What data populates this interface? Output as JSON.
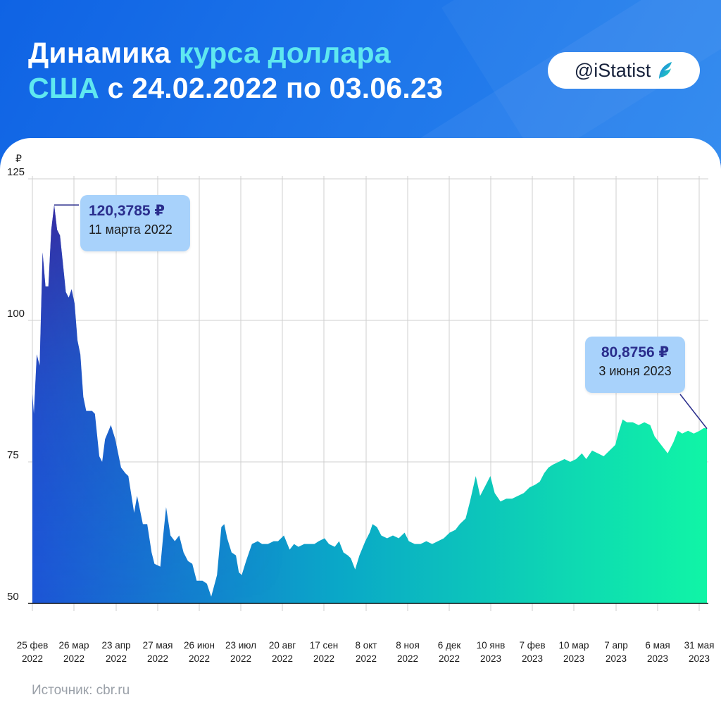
{
  "header": {
    "title_part1": "Динамика ",
    "title_part2": "курса доллара",
    "title_part3": "США",
    "title_part4": " с 24.02.2022 по 03.06.23",
    "badge": "@iStatist",
    "badge_icon": "istatist-logo-icon"
  },
  "colors": {
    "header_bg": "#1672e6",
    "highlight": "#5fe8f0",
    "area_top_left": "#3a2a9c",
    "area_bottom_left": "#1c64d8",
    "area_right": "#12f2a6",
    "callout_bg": "#a8d2fb",
    "callout_value": "#2a2d8c"
  },
  "callouts": [
    {
      "value": "120,3785 ₽",
      "date": "11 марта 2022"
    },
    {
      "value": "80,8756 ₽",
      "date": "3 июня 2023"
    }
  ],
  "source": "Источник: cbr.ru",
  "chart_data": {
    "type": "area",
    "title": "",
    "ylabel": "₽",
    "ylim": [
      50,
      125
    ],
    "yticks": [
      50,
      75,
      100,
      125
    ],
    "x_start": "2022-02-24",
    "x_end": "2023-06-03",
    "x_tick_labels": [
      [
        "25 фев",
        "2022"
      ],
      [
        "26 мар",
        "2022"
      ],
      [
        "23 апр",
        "2022"
      ],
      [
        "27 мая",
        "2022"
      ],
      [
        "26 июн",
        "2022"
      ],
      [
        "23 июл",
        "2022"
      ],
      [
        "20 авг",
        "2022"
      ],
      [
        "17 сен",
        "2022"
      ],
      [
        "8 окт",
        "2022"
      ],
      [
        "8 ноя",
        "2022"
      ],
      [
        "6 дек",
        "2022"
      ],
      [
        "10 янв",
        "2023"
      ],
      [
        "7 фев",
        "2023"
      ],
      [
        "10 мар",
        "2023"
      ],
      [
        "7 апр",
        "2023"
      ],
      [
        "6 мая",
        "2023"
      ],
      [
        "31 мая",
        "2023"
      ]
    ],
    "grid": true,
    "series": [
      {
        "values": [
          [
            "2022-02-24",
            87.0
          ],
          [
            "2022-02-25",
            83.5
          ],
          [
            "2022-02-27",
            94.0
          ],
          [
            "2022-03-01",
            92.0
          ],
          [
            "2022-03-03",
            112.0
          ],
          [
            "2022-03-05",
            106.0
          ],
          [
            "2022-03-07",
            106.0
          ],
          [
            "2022-03-09",
            116.0
          ],
          [
            "2022-03-11",
            120.3785
          ],
          [
            "2022-03-13",
            116.0
          ],
          [
            "2022-03-15",
            115.0
          ],
          [
            "2022-03-17",
            110.0
          ],
          [
            "2022-03-19",
            105.0
          ],
          [
            "2022-03-21",
            104.0
          ],
          [
            "2022-03-23",
            105.5
          ],
          [
            "2022-03-25",
            103.0
          ],
          [
            "2022-03-27",
            96.5
          ],
          [
            "2022-03-29",
            94.0
          ],
          [
            "2022-03-31",
            86.5
          ],
          [
            "2022-04-02",
            84.0
          ],
          [
            "2022-04-06",
            84.0
          ],
          [
            "2022-04-08",
            83.5
          ],
          [
            "2022-04-11",
            76.0
          ],
          [
            "2022-04-13",
            75.0
          ],
          [
            "2022-04-15",
            79.0
          ],
          [
            "2022-04-19",
            81.5
          ],
          [
            "2022-04-22",
            79.0
          ],
          [
            "2022-04-26",
            74.0
          ],
          [
            "2022-04-29",
            73.0
          ],
          [
            "2022-05-01",
            72.5
          ],
          [
            "2022-05-05",
            66.0
          ],
          [
            "2022-05-07",
            69.0
          ],
          [
            "2022-05-11",
            64.0
          ],
          [
            "2022-05-14",
            64.0
          ],
          [
            "2022-05-17",
            59.0
          ],
          [
            "2022-05-19",
            57.0
          ],
          [
            "2022-05-23",
            56.5
          ],
          [
            "2022-05-25",
            62.0
          ],
          [
            "2022-05-27",
            67.0
          ],
          [
            "2022-05-30",
            62.0
          ],
          [
            "2022-06-02",
            61.0
          ],
          [
            "2022-06-05",
            62.0
          ],
          [
            "2022-06-08",
            59.0
          ],
          [
            "2022-06-11",
            57.5
          ],
          [
            "2022-06-14",
            57.0
          ],
          [
            "2022-06-17",
            54.0
          ],
          [
            "2022-06-21",
            54.0
          ],
          [
            "2022-06-24",
            53.5
          ],
          [
            "2022-06-27",
            51.2
          ],
          [
            "2022-07-01",
            55.0
          ],
          [
            "2022-07-04",
            63.5
          ],
          [
            "2022-07-06",
            64.0
          ],
          [
            "2022-07-08",
            61.5
          ],
          [
            "2022-07-11",
            59.0
          ],
          [
            "2022-07-14",
            58.5
          ],
          [
            "2022-07-16",
            55.5
          ],
          [
            "2022-07-18",
            55.0
          ],
          [
            "2022-07-21",
            57.5
          ],
          [
            "2022-07-25",
            60.5
          ],
          [
            "2022-07-29",
            61.0
          ],
          [
            "2022-08-01",
            60.5
          ],
          [
            "2022-08-05",
            60.5
          ],
          [
            "2022-08-09",
            61.0
          ],
          [
            "2022-08-12",
            61.0
          ],
          [
            "2022-08-16",
            62.0
          ],
          [
            "2022-08-20",
            59.5
          ],
          [
            "2022-08-23",
            60.5
          ],
          [
            "2022-08-26",
            60.0
          ],
          [
            "2022-08-30",
            60.5
          ],
          [
            "2022-09-02",
            60.5
          ],
          [
            "2022-09-06",
            60.5
          ],
          [
            "2022-09-09",
            61.0
          ],
          [
            "2022-09-13",
            61.5
          ],
          [
            "2022-09-16",
            60.5
          ],
          [
            "2022-09-20",
            60.0
          ],
          [
            "2022-09-23",
            61.0
          ],
          [
            "2022-09-26",
            59.0
          ],
          [
            "2022-09-29",
            58.5
          ],
          [
            "2022-10-01",
            58.0
          ],
          [
            "2022-10-04",
            56.0
          ],
          [
            "2022-10-07",
            58.5
          ],
          [
            "2022-10-11",
            61.0
          ],
          [
            "2022-10-14",
            62.5
          ],
          [
            "2022-10-16",
            64.0
          ],
          [
            "2022-10-19",
            63.5
          ],
          [
            "2022-10-22",
            62.0
          ],
          [
            "2022-10-26",
            61.5
          ],
          [
            "2022-10-30",
            62.0
          ],
          [
            "2022-11-03",
            61.5
          ],
          [
            "2022-11-07",
            62.5
          ],
          [
            "2022-11-10",
            61.0
          ],
          [
            "2022-11-14",
            60.5
          ],
          [
            "2022-11-18",
            60.5
          ],
          [
            "2022-11-22",
            61.0
          ],
          [
            "2022-11-26",
            60.5
          ],
          [
            "2022-11-30",
            61.0
          ],
          [
            "2022-12-04",
            61.5
          ],
          [
            "2022-12-08",
            62.5
          ],
          [
            "2022-12-12",
            63.0
          ],
          [
            "2022-12-15",
            64.0
          ],
          [
            "2022-12-19",
            65.0
          ],
          [
            "2022-12-22",
            68.0
          ],
          [
            "2022-12-26",
            72.5
          ],
          [
            "2022-12-29",
            69.0
          ],
          [
            "2023-01-02",
            71.0
          ],
          [
            "2023-01-05",
            72.5
          ],
          [
            "2023-01-08",
            69.5
          ],
          [
            "2023-01-12",
            68.0
          ],
          [
            "2023-01-16",
            68.5
          ],
          [
            "2023-01-20",
            68.5
          ],
          [
            "2023-01-24",
            69.0
          ],
          [
            "2023-01-28",
            69.5
          ],
          [
            "2023-02-01",
            70.5
          ],
          [
            "2023-02-05",
            71.0
          ],
          [
            "2023-02-08",
            71.5
          ],
          [
            "2023-02-11",
            73.0
          ],
          [
            "2023-02-14",
            74.0
          ],
          [
            "2023-02-17",
            74.5
          ],
          [
            "2023-02-21",
            75.0
          ],
          [
            "2023-02-25",
            75.5
          ],
          [
            "2023-03-01",
            75.0
          ],
          [
            "2023-03-05",
            75.5
          ],
          [
            "2023-03-09",
            76.5
          ],
          [
            "2023-03-12",
            75.5
          ],
          [
            "2023-03-16",
            77.0
          ],
          [
            "2023-03-20",
            76.5
          ],
          [
            "2023-03-24",
            76.0
          ],
          [
            "2023-03-28",
            77.0
          ],
          [
            "2023-04-01",
            78.0
          ],
          [
            "2023-04-03",
            80.0
          ],
          [
            "2023-04-06",
            82.5
          ],
          [
            "2023-04-09",
            82.0
          ],
          [
            "2023-04-13",
            82.0
          ],
          [
            "2023-04-17",
            81.5
          ],
          [
            "2023-04-21",
            82.0
          ],
          [
            "2023-04-25",
            81.5
          ],
          [
            "2023-04-28",
            79.5
          ],
          [
            "2023-05-01",
            78.5
          ],
          [
            "2023-05-04",
            77.5
          ],
          [
            "2023-05-07",
            76.5
          ],
          [
            "2023-05-11",
            78.5
          ],
          [
            "2023-05-14",
            80.5
          ],
          [
            "2023-05-17",
            80.0
          ],
          [
            "2023-05-21",
            80.5
          ],
          [
            "2023-05-25",
            80.0
          ],
          [
            "2023-05-29",
            80.5
          ],
          [
            "2023-06-01",
            81.0
          ],
          [
            "2023-06-03",
            80.8756
          ]
        ]
      }
    ]
  }
}
